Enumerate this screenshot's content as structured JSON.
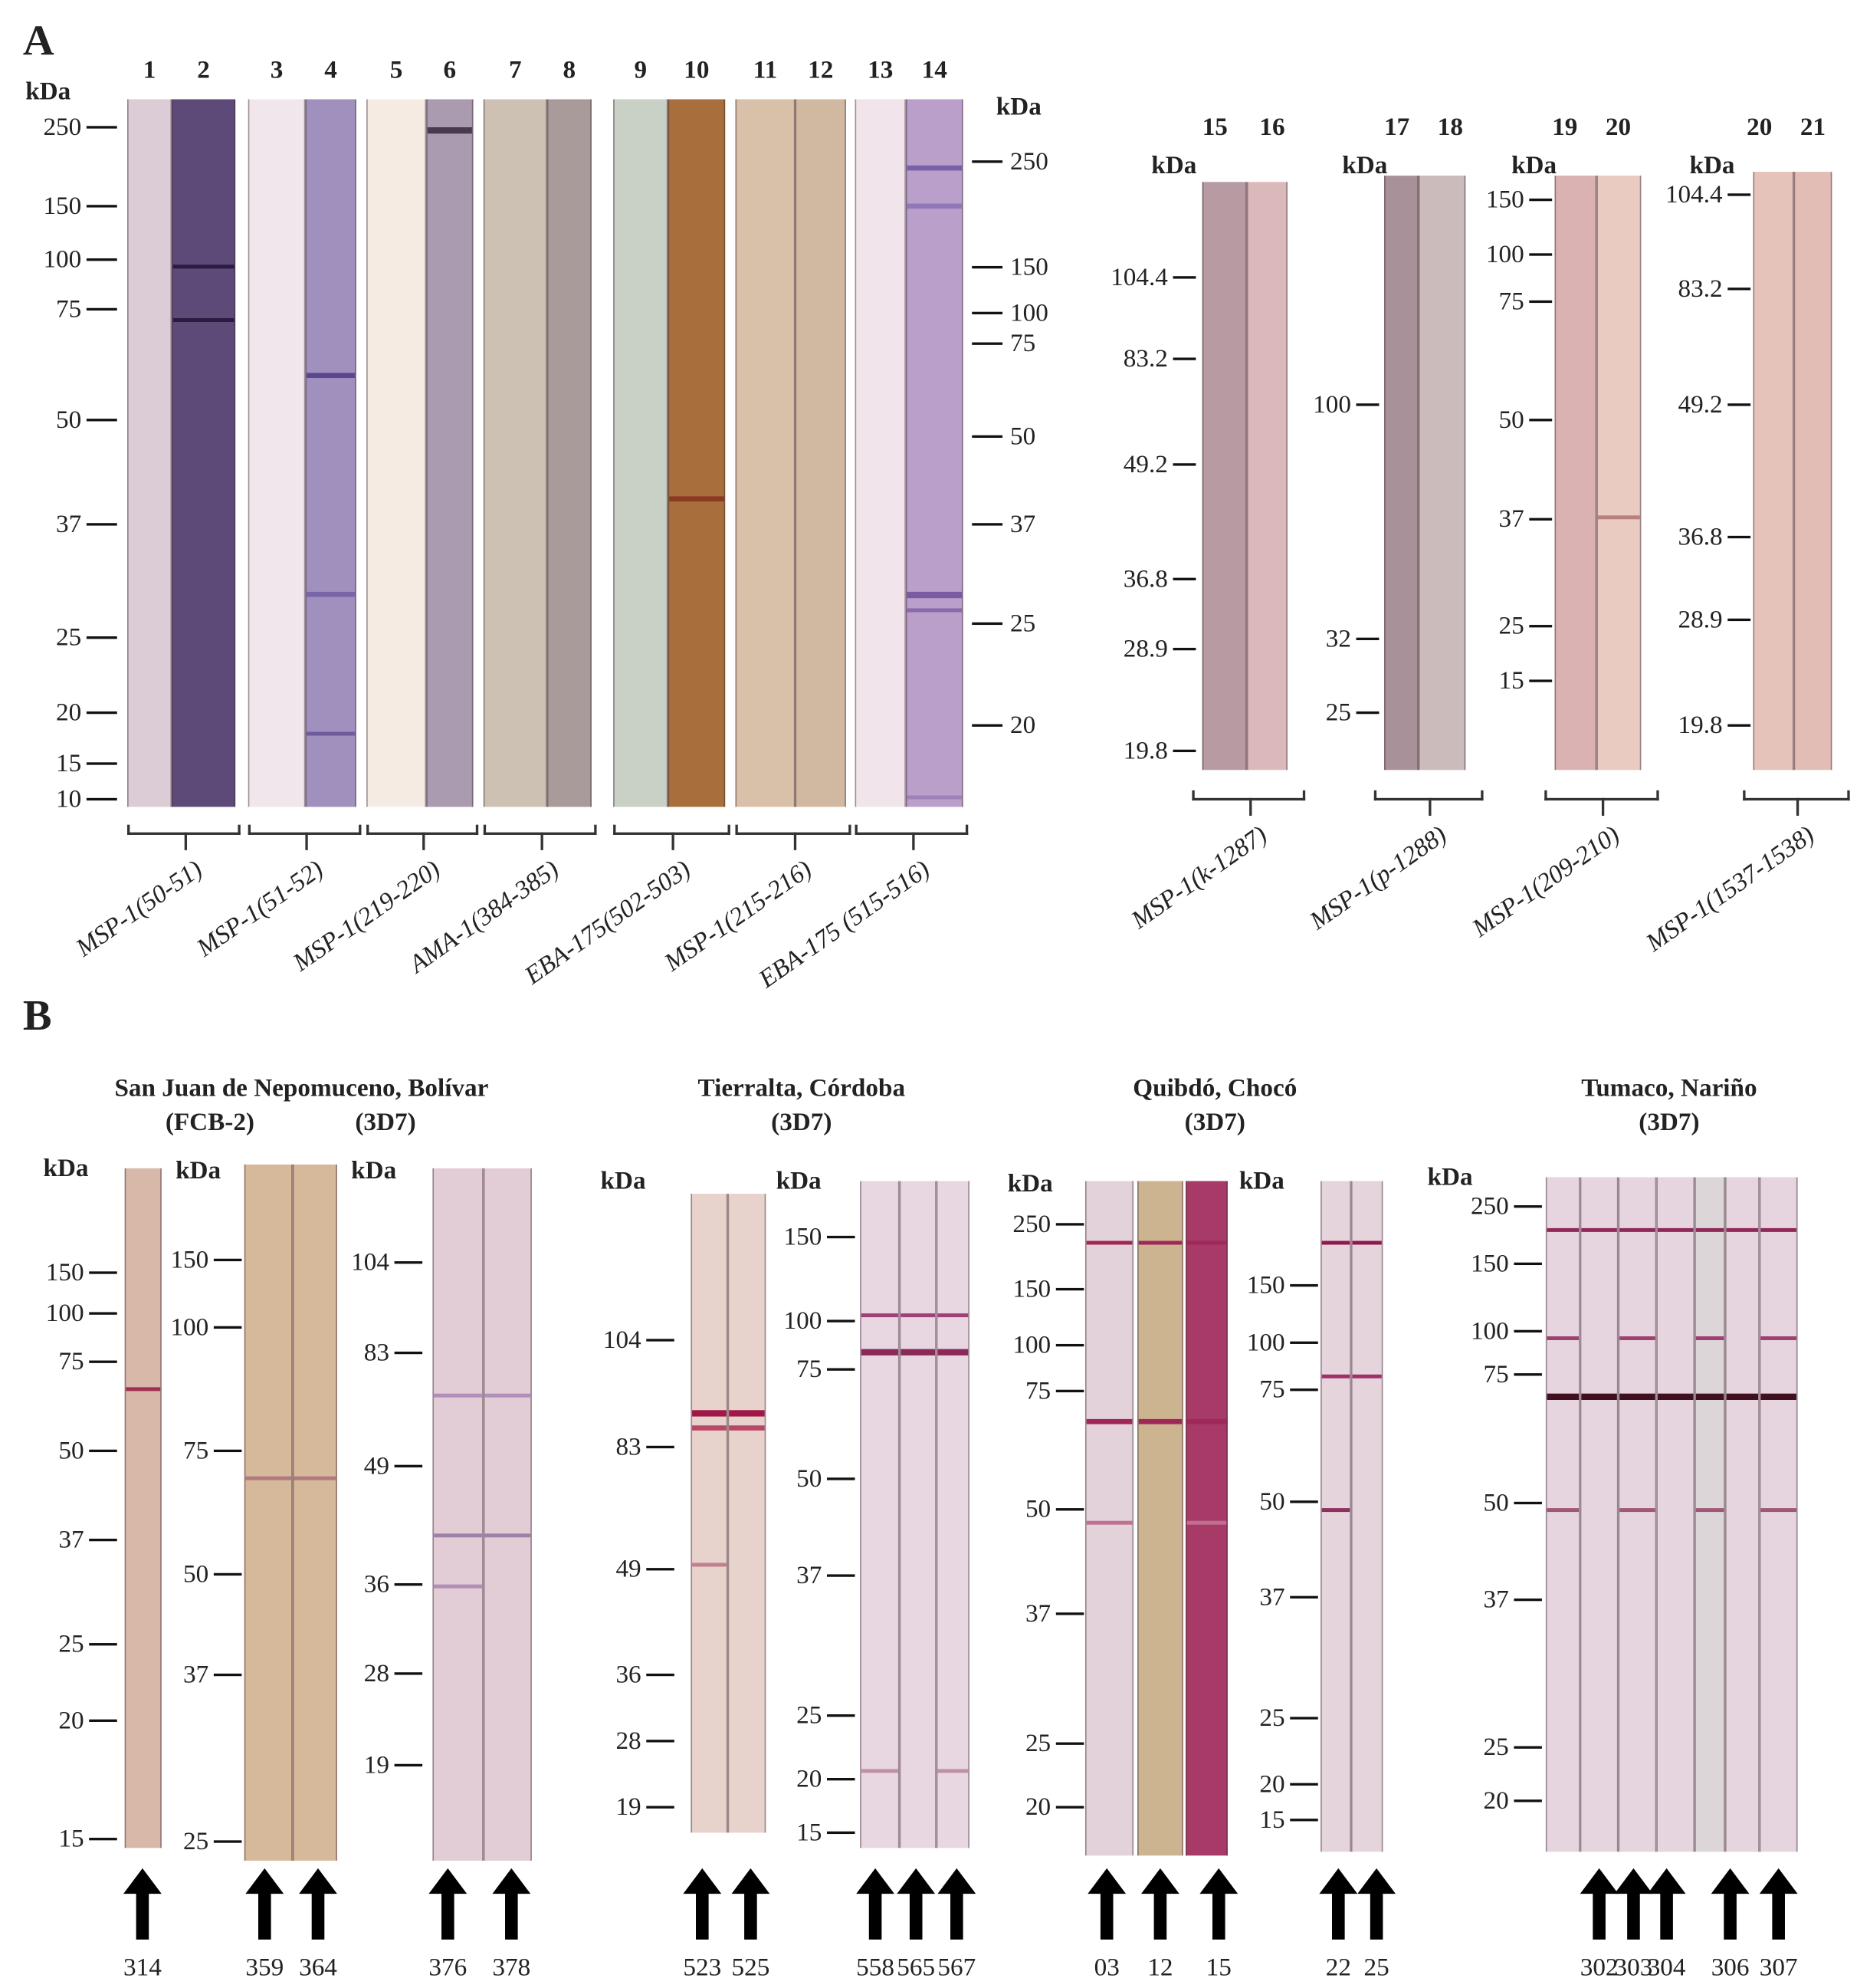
{
  "panels": {
    "a": "A",
    "b": "B"
  },
  "unit": "kDa",
  "panel_a": {
    "lane_numbers": [
      "1",
      "2",
      "3",
      "4",
      "5",
      "6",
      "7",
      "8",
      "9",
      "10",
      "11",
      "12",
      "13",
      "14"
    ],
    "left_ticks": [
      "250",
      "150",
      "100",
      "75",
      "50",
      "37",
      "25",
      "20",
      "15",
      "10"
    ],
    "right_ticks": [
      "250",
      "150",
      "100",
      "75",
      "50",
      "37",
      "25",
      "20"
    ],
    "groups": [
      "MSP-1(50-51)",
      "MSP-1(51-52)",
      "MSP-1(219-220)",
      "AMA-1(384-385)",
      "EBA-175(502-503)",
      "MSP-1(215-216)",
      "EBA-175 (515-516)"
    ],
    "blots": [
      {
        "lanes": [
          "15",
          "16"
        ],
        "ticks": [
          "104.4",
          "83.2",
          "49.2",
          "36.8",
          "28.9",
          "19.8"
        ],
        "label": "MSP-1(k-1287)"
      },
      {
        "lanes": [
          "17",
          "18"
        ],
        "ticks": [
          "100",
          "32",
          "25"
        ],
        "label": "MSP-1(p-1288)"
      },
      {
        "lanes": [
          "19",
          "20"
        ],
        "ticks": [
          "150",
          "100",
          "75",
          "50",
          "37",
          "25",
          "15"
        ],
        "label": "MSP-1(209-210)"
      },
      {
        "lanes": [
          "20",
          "21"
        ],
        "ticks": [
          "104.4",
          "83.2",
          "49.2",
          "36.8",
          "28.9",
          "19.8"
        ],
        "label": "MSP-1(1537-1538)"
      }
    ]
  },
  "panel_b": {
    "sites": [
      {
        "title": "San Juan de Nepomuceno, Bolívar",
        "strains": [
          "(FCB-2)",
          "(3D7)"
        ]
      },
      {
        "title": "Tierralta, Córdoba",
        "strains": [
          "(3D7)"
        ]
      },
      {
        "title": "Quibdó, Chocó",
        "strains": [
          "(3D7)"
        ]
      },
      {
        "title": "Tumaco, Nariño",
        "strains": [
          "(3D7)"
        ]
      }
    ],
    "blots": [
      {
        "ticks": [
          "150",
          "100",
          "75",
          "50",
          "37",
          "25",
          "20",
          "15"
        ],
        "samples": [
          "314"
        ]
      },
      {
        "ticks": [
          "150",
          "100",
          "75",
          "50",
          "37",
          "25"
        ],
        "samples": [
          "359",
          "364"
        ]
      },
      {
        "ticks": [
          "104",
          "83",
          "49",
          "36",
          "28",
          "19"
        ],
        "samples": [
          "376",
          "378"
        ]
      },
      {
        "ticks": [
          "104",
          "83",
          "49",
          "36",
          "28",
          "19"
        ],
        "samples": [
          "523",
          "525"
        ]
      },
      {
        "ticks": [
          "150",
          "100",
          "75",
          "50",
          "37",
          "25",
          "20",
          "15"
        ],
        "samples": [
          "558",
          "565",
          "567"
        ]
      },
      {
        "ticks": [
          "250",
          "150",
          "100",
          "75",
          "50",
          "37",
          "25",
          "20"
        ],
        "samples": [
          "03",
          "12",
          "15"
        ]
      },
      {
        "ticks": [
          "150",
          "100",
          "75",
          "50",
          "37",
          "25",
          "20",
          "15"
        ],
        "samples": [
          "22",
          "25"
        ]
      },
      {
        "ticks": [
          "250",
          "150",
          "100",
          "75",
          "50",
          "37",
          "25",
          "20"
        ],
        "samples": [
          "302",
          "303",
          "304",
          "306",
          "307"
        ]
      }
    ]
  }
}
